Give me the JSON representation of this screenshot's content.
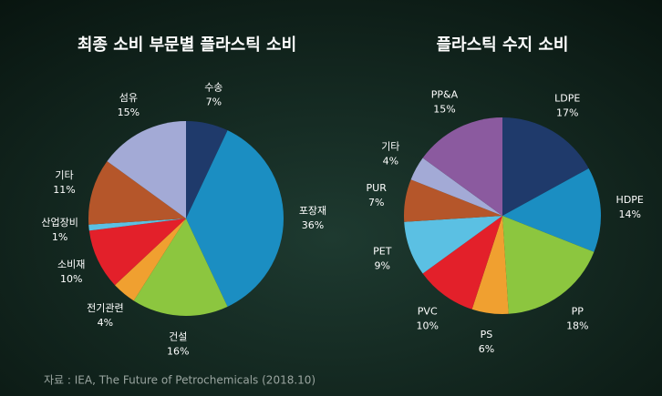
{
  "chart_data": [
    {
      "type": "pie",
      "title": "최종 소비 부문별 플라스틱 소비",
      "categories": [
        "수송",
        "포장재",
        "건설",
        "전기관련",
        "소비재",
        "산업장비",
        "기타",
        "섬유"
      ],
      "values": [
        7,
        36,
        16,
        4,
        10,
        1,
        11,
        15
      ],
      "value_labels": [
        "7%",
        "36%",
        "16%",
        "4%",
        "10%",
        "1%",
        "11%",
        "15%"
      ],
      "colors": [
        "#1f3a6b",
        "#1b8ec2",
        "#8cc63f",
        "#f0a030",
        "#e3202a",
        "#5bc0e3",
        "#b5562a",
        "#a3aad6"
      ]
    },
    {
      "type": "pie",
      "title": "플라스틱 수지 소비",
      "categories": [
        "LDPE",
        "HDPE",
        "PP",
        "PS",
        "PVC",
        "PET",
        "PUR",
        "기타",
        "PP&A"
      ],
      "values": [
        17,
        14,
        18,
        6,
        10,
        9,
        7,
        4,
        15
      ],
      "value_labels": [
        "17%",
        "14%",
        "18%",
        "6%",
        "10%",
        "9%",
        "7%",
        "4%",
        "15%"
      ],
      "colors": [
        "#1f3a6b",
        "#1b8ec2",
        "#8cc63f",
        "#f0a030",
        "#e3202a",
        "#5bc0e3",
        "#b5562a",
        "#a3aad6",
        "#8b5a9f"
      ]
    }
  ],
  "source": "자료 : IEA, The Future of Petrochemicals (2018.10)"
}
